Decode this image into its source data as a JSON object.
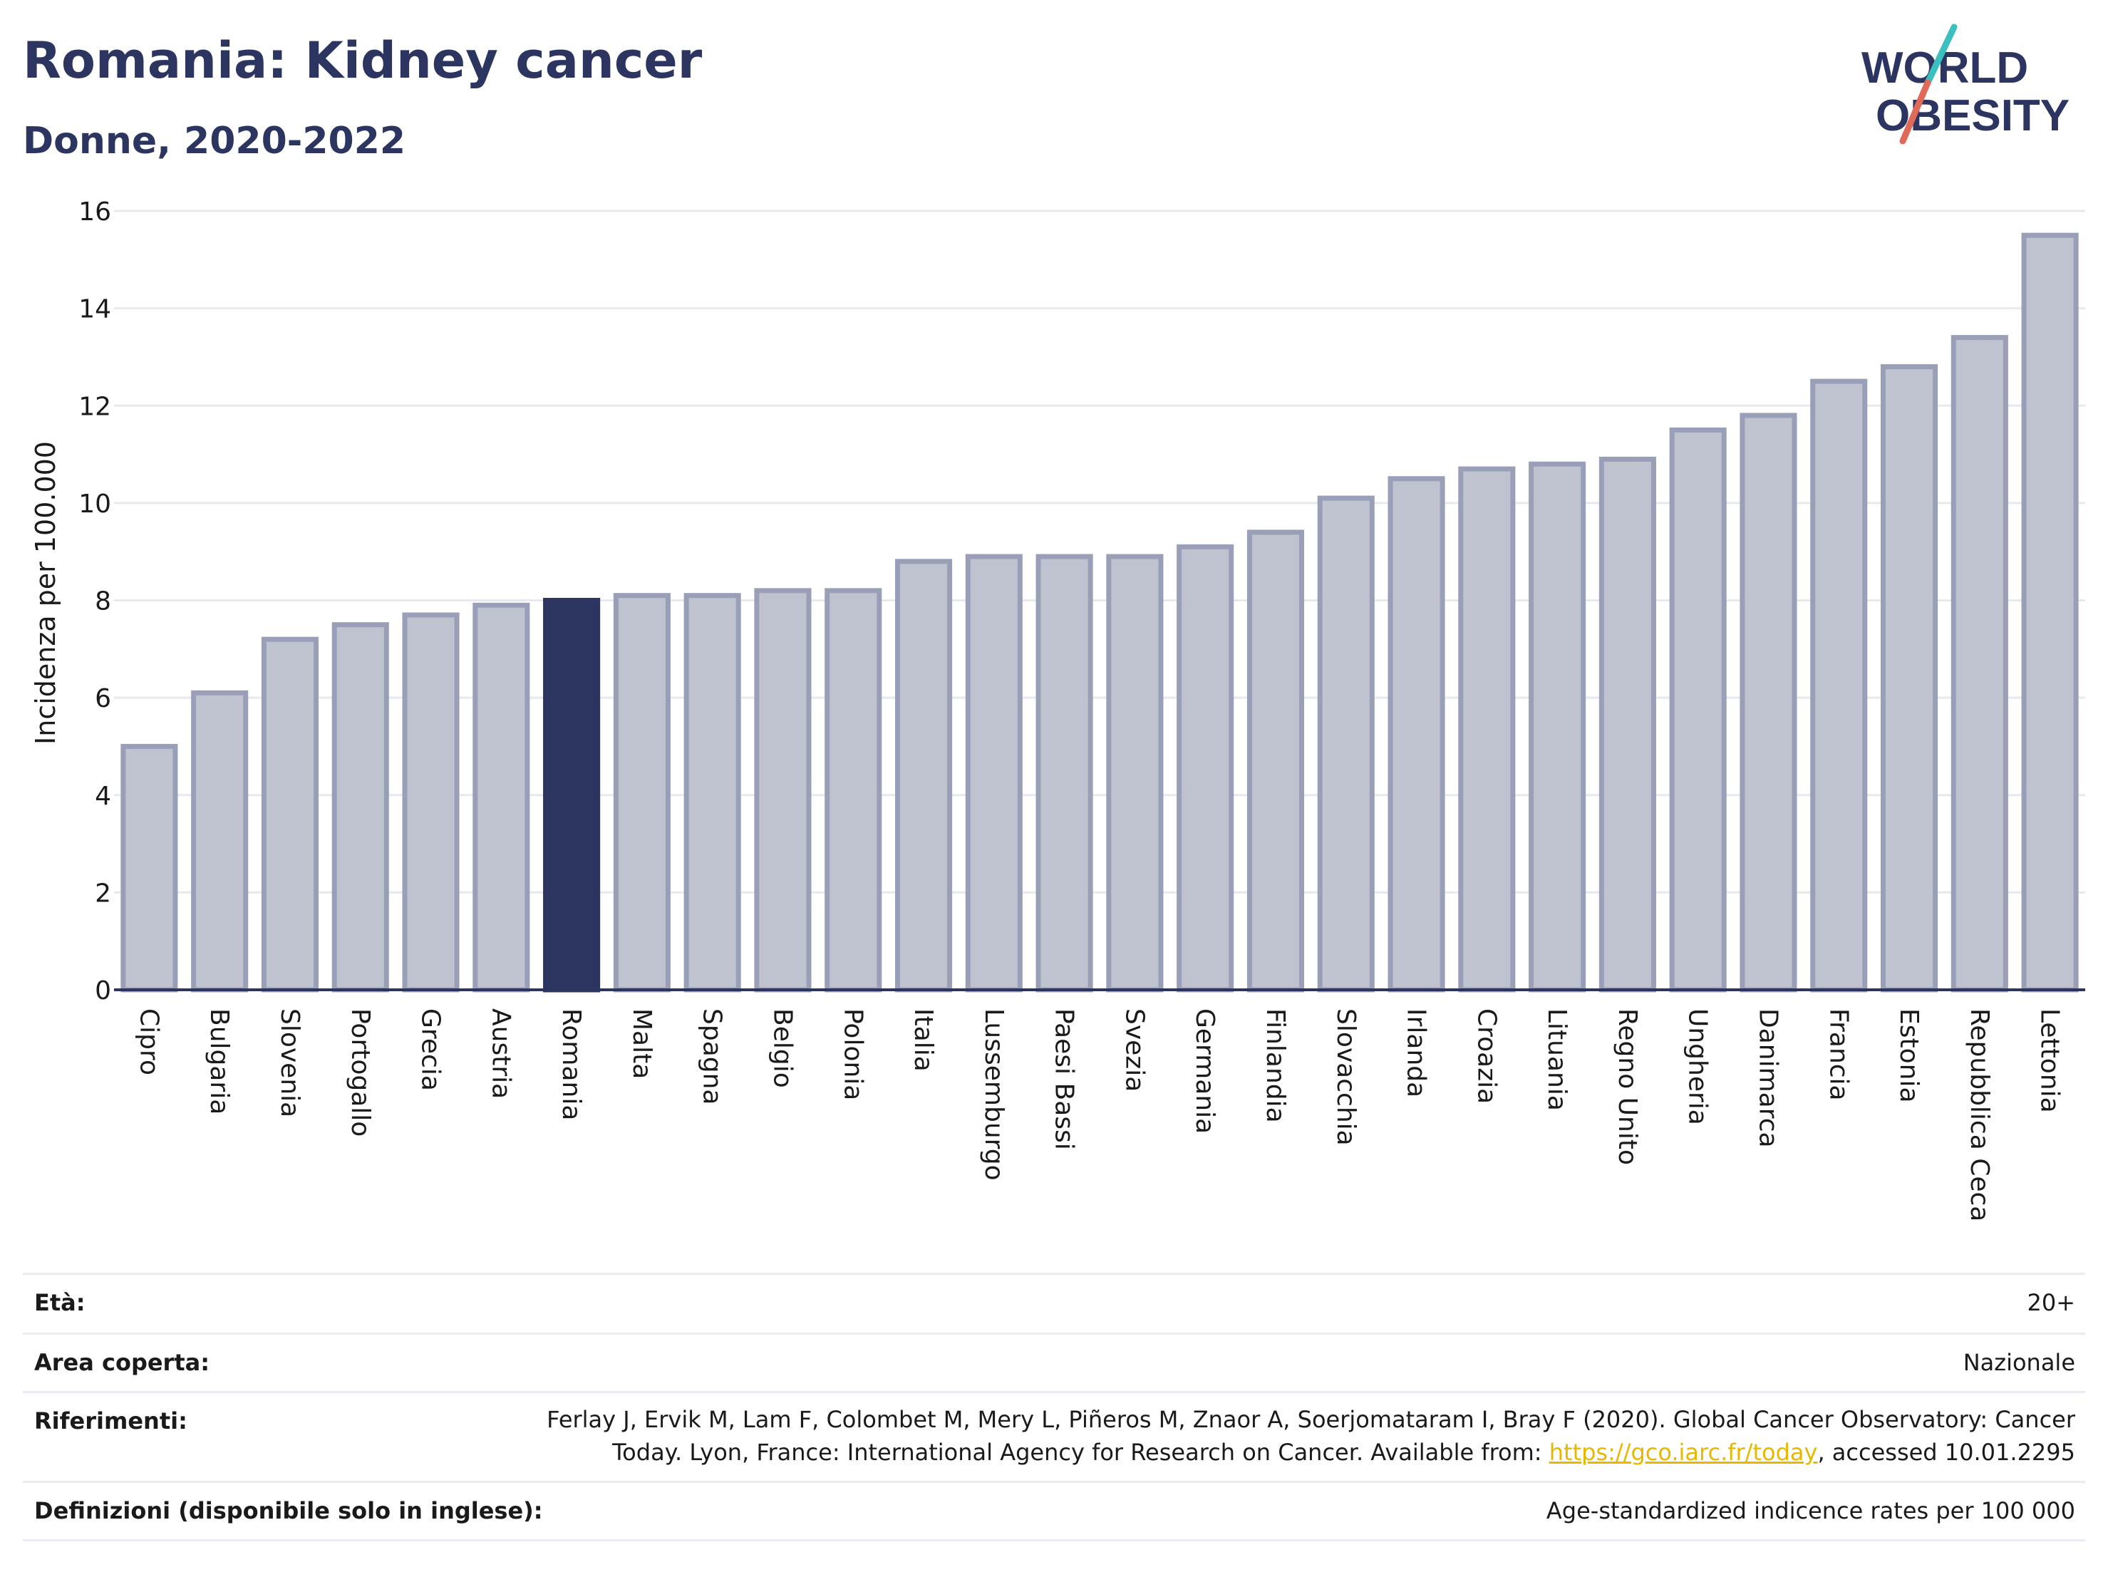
{
  "header": {
    "title": "Romania: Kidney cancer",
    "subtitle": "Donne, 2020-2022"
  },
  "logo": {
    "line1": "WORLD",
    "line2": "OBESITY",
    "colors": {
      "text": "#2b3560",
      "slash_top": "#3cbfbf",
      "slash_bottom": "#e06a5a"
    }
  },
  "chart_data": {
    "type": "bar",
    "ylabel": "Incidenza per 100.000",
    "xlabel": "",
    "ylim": [
      0,
      16
    ],
    "yticks": [
      0,
      2,
      4,
      6,
      8,
      10,
      12,
      14,
      16
    ],
    "grid": true,
    "highlight": "Romania",
    "colors": {
      "bar": "#bfc3d0",
      "bar_border": "#9a9fb8",
      "highlight": "#2b3560"
    },
    "categories": [
      "Cipro",
      "Bulgaria",
      "Slovenia",
      "Portogallo",
      "Grecia",
      "Austria",
      "Romania",
      "Malta",
      "Spagna",
      "Belgio",
      "Polonia",
      "Italia",
      "Lussemburgo",
      "Paesi Bassi",
      "Svezia",
      "Germania",
      "Finlandia",
      "Slovacchia",
      "Irlanda",
      "Croazia",
      "Lituania",
      "Regno Unito",
      "Ungheria",
      "Danimarca",
      "Francia",
      "Estonia",
      "Repubblica Ceca",
      "Lettonia"
    ],
    "values": [
      5.0,
      6.1,
      7.2,
      7.5,
      7.7,
      7.9,
      8.0,
      8.1,
      8.1,
      8.2,
      8.2,
      8.8,
      8.9,
      8.9,
      8.9,
      9.1,
      9.4,
      10.1,
      10.5,
      10.7,
      10.8,
      10.9,
      11.5,
      11.8,
      12.5,
      12.8,
      13.4,
      15.5
    ]
  },
  "info": {
    "age_label": "Età:",
    "age_value": "20+",
    "area_label": "Area coperta:",
    "area_value": "Nazionale",
    "refs_label": "Riferimenti:",
    "refs_line1": "Ferlay J, Ervik M, Lam F, Colombet M, Mery L, Piñeros M, Znaor A, Soerjomataram I, Bray F (2020). Global Cancer Observatory: Cancer",
    "refs_line2_pre": "Today. Lyon, France: International Agency for Research on Cancer. Available from: ",
    "refs_link": "https://gco.iarc.fr/today",
    "refs_line2_post": ", accessed 10.01.2295",
    "def_label": "Definizioni (disponibile solo in inglese):",
    "def_value": "Age-standardized indicence rates per 100 000"
  }
}
